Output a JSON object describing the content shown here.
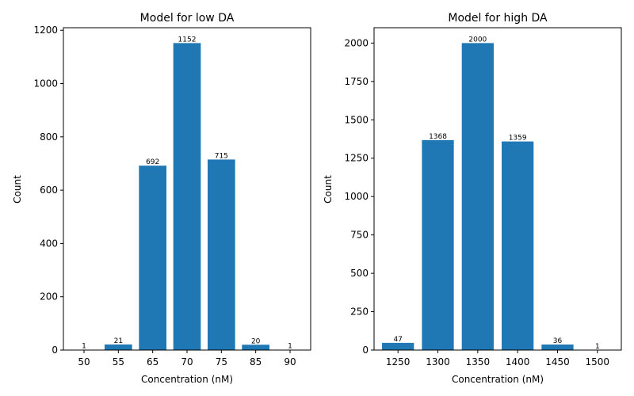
{
  "colors": {
    "bar": "#1f77b4",
    "axis": "#000000",
    "background": "#ffffff"
  },
  "chart_data": [
    {
      "type": "bar",
      "title": "Model for low DA",
      "xlabel": "Concentration (nM)",
      "ylabel": "Count",
      "categories": [
        "50",
        "55",
        "65",
        "70",
        "75",
        "85",
        "90"
      ],
      "values": [
        1,
        21,
        692,
        1152,
        715,
        20,
        1
      ],
      "data_labels": [
        "1",
        "21",
        "692",
        "1152",
        "715",
        "20",
        "1"
      ],
      "ylim": [
        0,
        1209.6
      ],
      "yticks": [
        0,
        200,
        400,
        600,
        800,
        1000,
        1200
      ],
      "ytick_labels": [
        "0",
        "200",
        "400",
        "600",
        "800",
        "1000",
        "1200"
      ],
      "grid": false,
      "legend": "none"
    },
    {
      "type": "bar",
      "title": "Model for high DA",
      "xlabel": "Concentration (nM)",
      "ylabel": "Count",
      "categories": [
        "1250",
        "1300",
        "1350",
        "1400",
        "1450",
        "1500"
      ],
      "values": [
        47,
        1368,
        2000,
        1359,
        36,
        1
      ],
      "data_labels": [
        "47",
        "1368",
        "2000",
        "1359",
        "36",
        "1"
      ],
      "ylim": [
        0,
        2100
      ],
      "yticks": [
        0,
        250,
        500,
        750,
        1000,
        1250,
        1500,
        1750,
        2000
      ],
      "ytick_labels": [
        "0",
        "250",
        "500",
        "750",
        "1000",
        "1250",
        "1500",
        "1750",
        "2000"
      ],
      "grid": false,
      "legend": "none"
    }
  ]
}
